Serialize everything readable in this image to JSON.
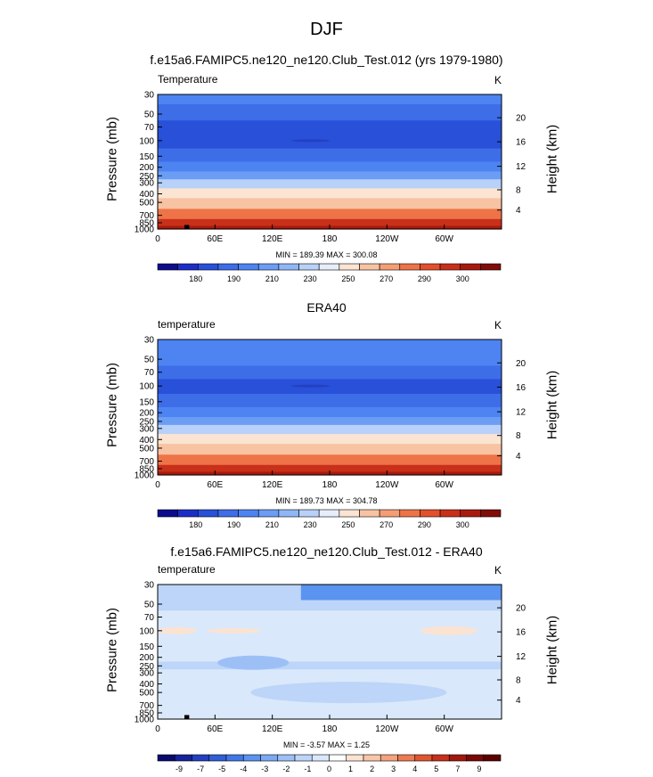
{
  "figure": {
    "title": "DJF",
    "panels": [
      {
        "id": "model",
        "title": "f.e15a6.FAMIPC5.ne120_ne120.Club_Test.012 (yrs 1979-1980)",
        "var_label": "Temperature",
        "units": "K",
        "minmax": "MIN = 189.39  MAX = 300.08"
      },
      {
        "id": "obs",
        "title": "ERA40",
        "var_label": "temperature",
        "units": "K",
        "minmax": "MIN = 189.73  MAX = 304.78"
      },
      {
        "id": "diff",
        "title": "f.e15a6.FAMIPC5.ne120_ne120.Club_Test.012 - ERA40",
        "var_label": "temperature",
        "units": "K",
        "minmax": "MIN = -3.57  MAX =  1.25"
      }
    ],
    "axis_left_label": "Pressure (mb)",
    "axis_right_label": "Height (km)"
  },
  "chart_data": [
    {
      "type": "heatmap",
      "title": "f.e15a6.FAMIPC5.ne120_ne120.Club_Test.012 (yrs 1979-1980)",
      "xlabel": "",
      "ylabel": "Pressure (mb)",
      "y2label": "Height (km)",
      "x_ticks": [
        "0",
        "60E",
        "120E",
        "180",
        "120W",
        "60W"
      ],
      "y_ticks": [
        "30",
        "50",
        "70",
        "100",
        "150",
        "200",
        "250",
        "300",
        "400",
        "500",
        "700",
        "850",
        "1000"
      ],
      "y2_ticks": [
        "20",
        "16",
        "12",
        "8",
        "4"
      ],
      "ylim": [
        30,
        1000
      ],
      "colorbar_levels": [
        180,
        185,
        190,
        200,
        210,
        220,
        230,
        240,
        250,
        260,
        270,
        280,
        290,
        295,
        300
      ],
      "colorbar_labels": [
        "180",
        "190",
        "210",
        "230",
        "250",
        "270",
        "290",
        "300"
      ],
      "level_temperature_K": [
        {
          "pressure": 30,
          "value": 212
        },
        {
          "pressure": 50,
          "value": 207
        },
        {
          "pressure": 70,
          "value": 200
        },
        {
          "pressure": 100,
          "value": 198
        },
        {
          "pressure": 150,
          "value": 205
        },
        {
          "pressure": 200,
          "value": 212
        },
        {
          "pressure": 250,
          "value": 222
        },
        {
          "pressure": 300,
          "value": 232
        },
        {
          "pressure": 400,
          "value": 248
        },
        {
          "pressure": 500,
          "value": 256
        },
        {
          "pressure": 700,
          "value": 272
        },
        {
          "pressure": 850,
          "value": 283
        },
        {
          "pressure": 1000,
          "value": 292
        }
      ],
      "min": 189.39,
      "max": 300.08
    },
    {
      "type": "heatmap",
      "title": "ERA40",
      "ylabel": "Pressure (mb)",
      "y2label": "Height (km)",
      "x_ticks": [
        "0",
        "60E",
        "120E",
        "180",
        "120W",
        "60W"
      ],
      "y_ticks": [
        "30",
        "50",
        "70",
        "100",
        "150",
        "200",
        "250",
        "300",
        "400",
        "500",
        "700",
        "850",
        "1000"
      ],
      "y2_ticks": [
        "20",
        "16",
        "12",
        "8",
        "4"
      ],
      "ylim": [
        30,
        1000
      ],
      "colorbar_levels": [
        180,
        185,
        190,
        200,
        210,
        220,
        230,
        240,
        250,
        260,
        270,
        280,
        290,
        295,
        300
      ],
      "colorbar_labels": [
        "180",
        "190",
        "210",
        "230",
        "250",
        "270",
        "290",
        "300"
      ],
      "level_temperature_K": [
        {
          "pressure": 30,
          "value": 213
        },
        {
          "pressure": 50,
          "value": 208
        },
        {
          "pressure": 70,
          "value": 201
        },
        {
          "pressure": 100,
          "value": 198
        },
        {
          "pressure": 150,
          "value": 205
        },
        {
          "pressure": 200,
          "value": 213
        },
        {
          "pressure": 250,
          "value": 222
        },
        {
          "pressure": 300,
          "value": 233
        },
        {
          "pressure": 400,
          "value": 248
        },
        {
          "pressure": 500,
          "value": 257
        },
        {
          "pressure": 700,
          "value": 273
        },
        {
          "pressure": 850,
          "value": 284
        },
        {
          "pressure": 1000,
          "value": 294
        }
      ],
      "min": 189.73,
      "max": 304.78
    },
    {
      "type": "heatmap",
      "title": "f.e15a6.FAMIPC5.ne120_ne120.Club_Test.012 - ERA40",
      "ylabel": "Pressure (mb)",
      "y2label": "Height (km)",
      "x_ticks": [
        "0",
        "60E",
        "120E",
        "180",
        "120W",
        "60W"
      ],
      "y_ticks": [
        "30",
        "50",
        "70",
        "100",
        "150",
        "200",
        "250",
        "300",
        "400",
        "500",
        "700",
        "850",
        "1000"
      ],
      "y2_ticks": [
        "20",
        "16",
        "12",
        "8",
        "4"
      ],
      "ylim": [
        30,
        1000
      ],
      "colorbar_levels": [
        -10,
        -9,
        -8,
        -7,
        -6,
        -5,
        -4,
        -3,
        -2,
        -1,
        0,
        1,
        2,
        3,
        4,
        5,
        6,
        7,
        8,
        9,
        10
      ],
      "colorbar_labels": [
        "-9",
        "-7",
        "-5",
        "-4",
        "-3",
        "-2",
        "-1",
        "0",
        "1",
        "2",
        "3",
        "4",
        "5",
        "7",
        "9"
      ],
      "level_difference_K": [
        {
          "pressure": 30,
          "value": -1.5
        },
        {
          "pressure": 50,
          "value": -1.5
        },
        {
          "pressure": 70,
          "value": -1.0
        },
        {
          "pressure": 100,
          "value": -0.5
        },
        {
          "pressure": 150,
          "value": -1.0
        },
        {
          "pressure": 200,
          "value": -1.0
        },
        {
          "pressure": 250,
          "value": -1.5
        },
        {
          "pressure": 300,
          "value": -1.0
        },
        {
          "pressure": 400,
          "value": -1.0
        },
        {
          "pressure": 500,
          "value": -0.5
        },
        {
          "pressure": 700,
          "value": -1.0
        },
        {
          "pressure": 850,
          "value": -1.0
        },
        {
          "pressure": 1000,
          "value": -0.5
        }
      ],
      "min": -3.57,
      "max": 1.25
    }
  ],
  "colors": {
    "temperature_palette": [
      "#0c0c8c",
      "#1a2ec7",
      "#2850d8",
      "#3d6ee8",
      "#4d84f2",
      "#6b9df5",
      "#8fb6f7",
      "#b7d1f8",
      "#e6eefb",
      "#fbe4d2",
      "#f8c3a3",
      "#f59e75",
      "#ee7448",
      "#e2502c",
      "#c83019",
      "#a81a0e",
      "#800d07"
    ],
    "difference_palette": [
      "#0a0a6e",
      "#16239c",
      "#2340c2",
      "#2f5ed8",
      "#3f78e8",
      "#5a93f0",
      "#7aaaf4",
      "#9cc0f6",
      "#bcd5f8",
      "#dae8fb",
      "#ffffff",
      "#fbe3d2",
      "#f8c6a8",
      "#f4a37c",
      "#ee7a52",
      "#e2552f",
      "#c7301b",
      "#a2170c",
      "#7a0806",
      "#5a0000"
    ]
  }
}
